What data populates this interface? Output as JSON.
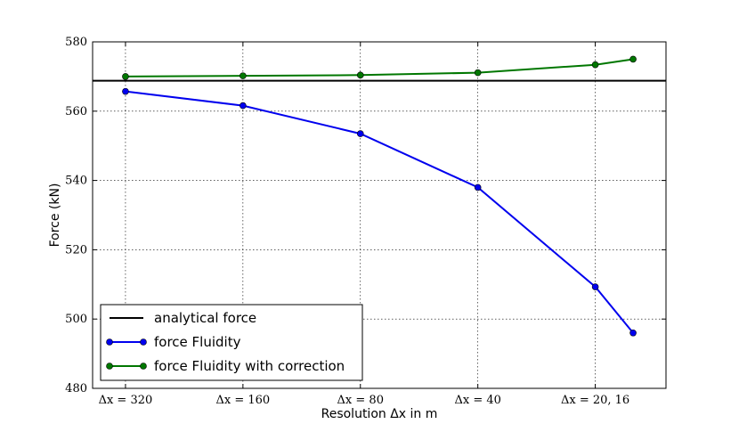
{
  "chart_data": {
    "type": "line",
    "xlabel": "Resolution Δx in m",
    "ylabel": "Force (kN)",
    "ylim": [
      480,
      580
    ],
    "y_ticks": [
      480,
      500,
      520,
      540,
      560,
      580
    ],
    "x_ticks": [
      {
        "pos": 320,
        "label": "Δx = 320"
      },
      {
        "pos": 160,
        "label": "Δx = 160"
      },
      {
        "pos": 80,
        "label": "Δx = 80"
      },
      {
        "pos": 40,
        "label": "Δx = 40"
      },
      {
        "pos": 20,
        "label": "Δx = 20, 16"
      }
    ],
    "grid": true,
    "legend_position": "lower-left",
    "reference_line": {
      "name": "analytical force",
      "value": 568.8,
      "color": "#000000"
    },
    "series": [
      {
        "name": "force Fluidity",
        "color": "#0000ee",
        "x": [
          320,
          160,
          80,
          40,
          20,
          16
        ],
        "y": [
          565.7,
          561.6,
          553.5,
          538.0,
          509.3,
          496.0
        ]
      },
      {
        "name": "force Fluidity with correction",
        "color": "#007700",
        "x": [
          320,
          160,
          80,
          40,
          20,
          16
        ],
        "y": [
          570.0,
          570.2,
          570.4,
          571.1,
          573.4,
          575.0
        ]
      }
    ]
  }
}
